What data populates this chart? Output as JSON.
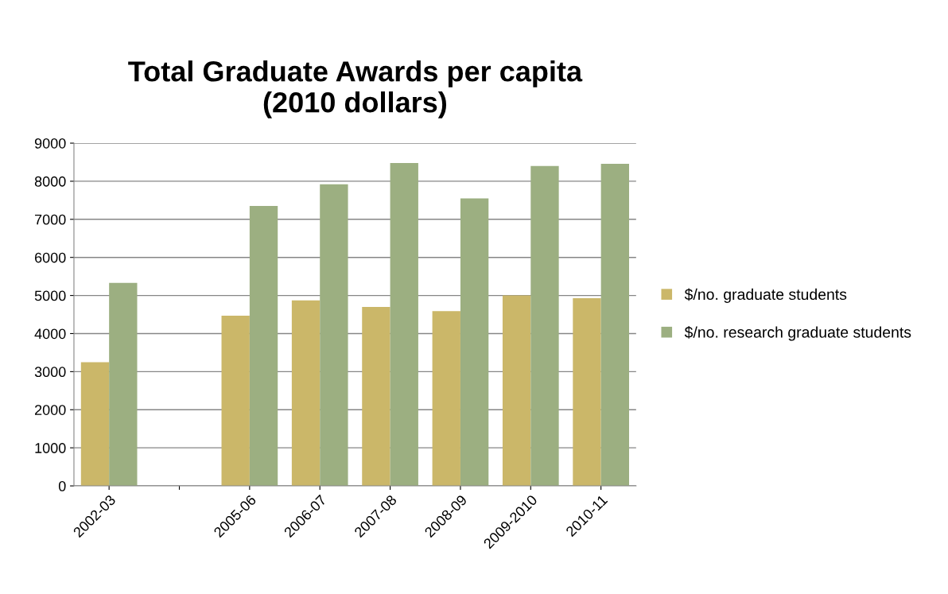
{
  "chart_data": {
    "type": "bar",
    "title": "Total Graduate Awards per capita\n(2010 dollars)",
    "categories": [
      "2002-03",
      null,
      "2005-06",
      "2006-07",
      "2007-08",
      "2008-09",
      "2009-2010",
      "2010-11"
    ],
    "series": [
      {
        "name": "$/no. graduate students",
        "color": "#cbb769",
        "values": [
          3250,
          null,
          4470,
          4870,
          4700,
          4590,
          5000,
          4930
        ]
      },
      {
        "name": "$/no. research graduate students",
        "color": "#9caf81",
        "values": [
          5330,
          null,
          7350,
          7920,
          8480,
          7550,
          8400,
          8460
        ]
      }
    ],
    "ylim": [
      0,
      9000
    ],
    "yticks": [
      0,
      1000,
      2000,
      3000,
      4000,
      5000,
      6000,
      7000,
      8000,
      9000
    ],
    "grid": "y",
    "legend": "right"
  }
}
